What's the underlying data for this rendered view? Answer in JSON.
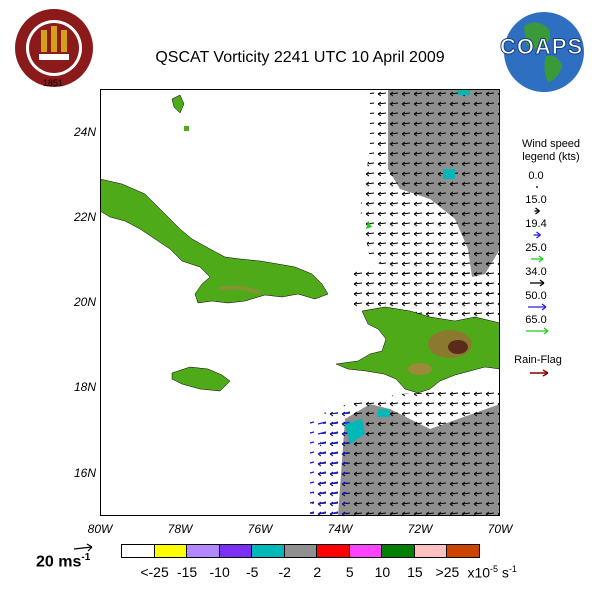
{
  "title": "QSCAT Vorticity 2241 UTC 10 April 2009",
  "logos": {
    "fsu_text": "FLORIDA STATE UNIVERSITY",
    "fsu_year": "1851",
    "coaps_text": "COAPS"
  },
  "axes": {
    "lat_labels": [
      "24N",
      "22N",
      "20N",
      "18N",
      "16N"
    ],
    "lon_labels": [
      "80W",
      "78W",
      "76W",
      "74W",
      "72W",
      "70W"
    ],
    "lat_range": [
      15,
      25
    ],
    "lon_range": [
      -80,
      -70
    ]
  },
  "wind_legend": {
    "title_line1": "Wind speed",
    "title_line2": "legend (kts)",
    "entries": [
      {
        "label": "0.0",
        "color": "#000000"
      },
      {
        "label": "15.0",
        "color": "#000000"
      },
      {
        "label": "19.4",
        "color": "#2222dd"
      },
      {
        "label": "25.0",
        "color": "#22cc22"
      },
      {
        "label": "34.0",
        "color": "#000000"
      },
      {
        "label": "50.0",
        "color": "#2222dd"
      },
      {
        "label": "65.0",
        "color": "#22cc22"
      }
    ],
    "rain_flag_label": "Rain-Flag",
    "rain_flag_color": "#8b0000"
  },
  "reference_vector": {
    "label": "20 ms",
    "superscript": "-1"
  },
  "color_bar": {
    "colors": [
      "#ffffff",
      "#ffff00",
      "#b388ff",
      "#7b2ff7",
      "#00b8b8",
      "#909090",
      "#ff0000",
      "#ff44ff",
      "#007f00",
      "#ffc0c0",
      "#cc4400"
    ],
    "labels": [
      "<-25",
      "-15",
      "-10",
      "-5",
      "-2",
      "2",
      "5",
      "10",
      "15",
      ">25"
    ],
    "units": "x10",
    "units_exp": "-5",
    "units_tail": "s",
    "units_tail_exp": "-1"
  }
}
